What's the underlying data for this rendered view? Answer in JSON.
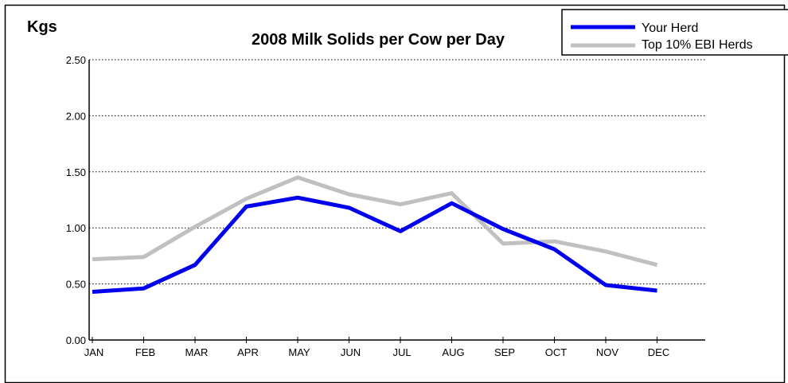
{
  "chart_data": {
    "type": "line",
    "title": "2008 Milk Solids per Cow per Day",
    "xlabel": "",
    "ylabel": "Kgs",
    "categories": [
      "JAN",
      "FEB",
      "MAR",
      "APR",
      "MAY",
      "JUN",
      "JUL",
      "AUG",
      "SEP",
      "OCT",
      "NOV",
      "DEC"
    ],
    "ylim": [
      0,
      2.5
    ],
    "yticks": [
      "0.00",
      "0.50",
      "1.00",
      "1.50",
      "2.00",
      "2.50"
    ],
    "grid": "horizontal-dotted",
    "legend_position": "top-right",
    "series": [
      {
        "name": "Your Herd",
        "color": "#0000ee",
        "values": [
          0.43,
          0.46,
          0.67,
          1.19,
          1.27,
          1.18,
          0.97,
          1.22,
          0.99,
          0.81,
          0.49,
          0.44
        ]
      },
      {
        "name": "Top 10% EBI Herds",
        "color": "#c0c0c0",
        "values": [
          0.72,
          0.74,
          1.01,
          1.26,
          1.45,
          1.3,
          1.21,
          1.31,
          0.86,
          0.88,
          0.79,
          0.67
        ]
      }
    ]
  }
}
